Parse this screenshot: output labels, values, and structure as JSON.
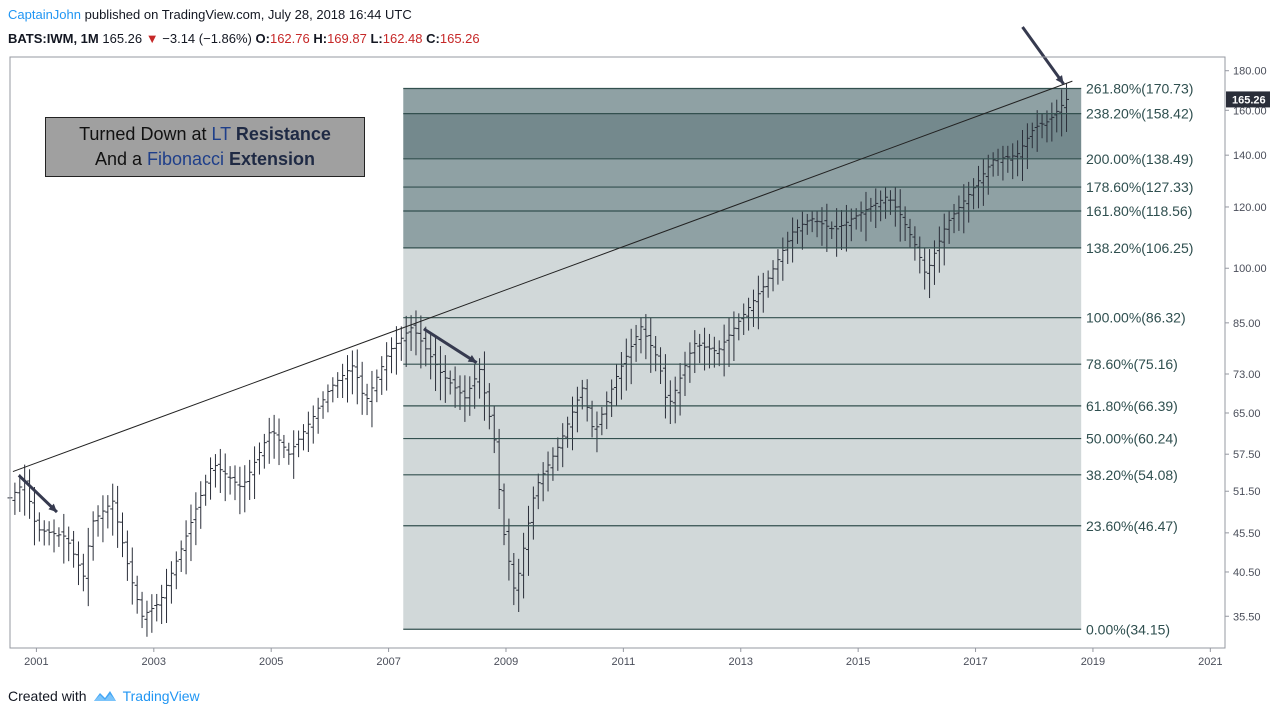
{
  "header": {
    "author": "CaptainJohn",
    "published_text": " published on TradingView.com, July 28, 2018 16:44 UTC"
  },
  "ticker": {
    "symbol_interval": "BATS:IWM, 1M",
    "last": "165.26",
    "down_arrow": "▼",
    "change": "−3.14 (−1.86%)",
    "open_label": "O:",
    "open": "162.76",
    "high_label": "H:",
    "high": "169.87",
    "low_label": "L:",
    "low": "162.48",
    "close_label": "C:",
    "close": "165.26",
    "colors": {
      "down": "#c62828"
    }
  },
  "annotation": {
    "line1_a": "Turned  Down at ",
    "line1_b": "LT ",
    "line1_c": "Resistance",
    "line2_a": "And  a ",
    "line2_b": "Fibonacci ",
    "line2_c": "Extension"
  },
  "footer": {
    "created_with": "Created with",
    "brand": "TradingView"
  },
  "chart_data": {
    "type": "bar",
    "price_scale": "log",
    "xlabel": "",
    "ylabel": "",
    "x_range": [
      2000.55,
      2021.25
    ],
    "ylim": [
      32.3,
      187.5
    ],
    "x_ticks": [
      {
        "label": "2001",
        "year": 2001
      },
      {
        "label": "2003",
        "year": 2003
      },
      {
        "label": "2005",
        "year": 2005
      },
      {
        "label": "2007",
        "year": 2007
      },
      {
        "label": "2009",
        "year": 2009
      },
      {
        "label": "2011",
        "year": 2011
      },
      {
        "label": "2013",
        "year": 2013
      },
      {
        "label": "2015",
        "year": 2015
      },
      {
        "label": "2017",
        "year": 2017
      },
      {
        "label": "2019",
        "year": 2019
      },
      {
        "label": "2021",
        "year": 2021
      }
    ],
    "y_ticks": [
      {
        "label": "180.00",
        "value": 180
      },
      {
        "label": "160.00",
        "value": 160
      },
      {
        "label": "140.00",
        "value": 140
      },
      {
        "label": "120.00",
        "value": 120
      },
      {
        "label": "100.00",
        "value": 100
      },
      {
        "label": "85.00",
        "value": 85
      },
      {
        "label": "73.00",
        "value": 73
      },
      {
        "label": "65.00",
        "value": 65
      },
      {
        "label": "57.50",
        "value": 57.5
      },
      {
        "label": "51.50",
        "value": 51.5
      },
      {
        "label": "45.50",
        "value": 45.5
      },
      {
        "label": "40.50",
        "value": 40.5
      },
      {
        "label": "35.50",
        "value": 35.5
      }
    ],
    "last_price": {
      "label": "165.26",
      "value": 165.26
    },
    "fib_extension": {
      "x_start": 2007.25,
      "x_end": 2018.8,
      "levels": [
        {
          "label": "261.80%(170.73)",
          "ratio": 2.618,
          "value": 170.73
        },
        {
          "label": "238.20%(158.42)",
          "ratio": 2.382,
          "value": 158.42
        },
        {
          "label": "200.00%(138.49)",
          "ratio": 2.0,
          "value": 138.49
        },
        {
          "label": "178.60%(127.33)",
          "ratio": 1.786,
          "value": 127.33
        },
        {
          "label": "161.80%(118.56)",
          "ratio": 1.618,
          "value": 118.56
        },
        {
          "label": "138.20%(106.25)",
          "ratio": 1.382,
          "value": 106.25
        },
        {
          "label": "100.00%(86.32)",
          "ratio": 1.0,
          "value": 86.32
        },
        {
          "label": "78.60%(75.16)",
          "ratio": 0.786,
          "value": 75.16
        },
        {
          "label": "61.80%(66.39)",
          "ratio": 0.618,
          "value": 66.39
        },
        {
          "label": "50.00%(60.24)",
          "ratio": 0.5,
          "value": 60.24
        },
        {
          "label": "38.20%(54.08)",
          "ratio": 0.382,
          "value": 54.08
        },
        {
          "label": "23.60%(46.47)",
          "ratio": 0.236,
          "value": 46.47
        },
        {
          "label": "0.00%(34.15)",
          "ratio": 0.0,
          "value": 34.15
        }
      ],
      "zone_colors": {
        "upper_dark": "#74898d",
        "upper_mid": "#8fa1a4",
        "lower": "#d1d8d9",
        "line": "#33504f"
      }
    },
    "trendline": {
      "x1": 2000.6,
      "y1": 54.6,
      "x2": 2018.65,
      "y2": 174.5
    },
    "arrows": [
      {
        "from_x": 2000.7,
        "from_y": 54.0,
        "to_x": 2001.35,
        "to_y": 48.4
      },
      {
        "from_x": 2007.6,
        "from_y": 83.5,
        "to_x": 2008.5,
        "to_y": 75.5
      },
      {
        "from_x": 2017.8,
        "from_y": 205.0,
        "to_x": 2018.5,
        "to_y": 173.0
      }
    ],
    "series_anchors": [
      [
        2000.55,
        50.5
      ],
      [
        2000.8,
        53.0
      ],
      [
        2001.0,
        46.0
      ],
      [
        2001.5,
        45.0
      ],
      [
        2001.8,
        40.0
      ],
      [
        2001.95,
        47.0
      ],
      [
        2002.3,
        50.0
      ],
      [
        2002.6,
        40.0
      ],
      [
        2002.8,
        35.5
      ],
      [
        2003.1,
        37.0
      ],
      [
        2003.5,
        44.0
      ],
      [
        2004.0,
        56.0
      ],
      [
        2004.5,
        52.0
      ],
      [
        2005.0,
        62.0
      ],
      [
        2005.3,
        57.5
      ],
      [
        2005.7,
        64.0
      ],
      [
        2006.0,
        70.0
      ],
      [
        2006.4,
        75.0
      ],
      [
        2006.6,
        67.0
      ],
      [
        2007.0,
        78.0
      ],
      [
        2007.4,
        84.0
      ],
      [
        2007.9,
        73.0
      ],
      [
        2008.3,
        68.0
      ],
      [
        2008.55,
        74.0
      ],
      [
        2008.8,
        60.0
      ],
      [
        2008.95,
        46.0
      ],
      [
        2009.15,
        38.0
      ],
      [
        2009.5,
        52.0
      ],
      [
        2009.9,
        59.0
      ],
      [
        2010.3,
        70.0
      ],
      [
        2010.5,
        61.0
      ],
      [
        2010.9,
        73.0
      ],
      [
        2011.3,
        84.0
      ],
      [
        2011.6,
        76.0
      ],
      [
        2011.75,
        66.0
      ],
      [
        2011.9,
        70.0
      ],
      [
        2012.2,
        80.0
      ],
      [
        2012.6,
        78.0
      ],
      [
        2012.9,
        84.0
      ],
      [
        2013.4,
        95.0
      ],
      [
        2013.9,
        112.0
      ],
      [
        2014.2,
        116.0
      ],
      [
        2014.6,
        112.0
      ],
      [
        2014.9,
        116.0
      ],
      [
        2015.5,
        124.0
      ],
      [
        2015.7,
        118.0
      ],
      [
        2016.0,
        106.0
      ],
      [
        2016.15,
        98.0
      ],
      [
        2016.5,
        114.0
      ],
      [
        2016.9,
        125.0
      ],
      [
        2017.3,
        138.0
      ],
      [
        2017.7,
        140.0
      ],
      [
        2018.0,
        152.0
      ],
      [
        2018.25,
        155.0
      ],
      [
        2018.55,
        165.26
      ]
    ],
    "colors": {
      "bars": "#2a2e39",
      "trendline": "#222222",
      "arrow": "#363a4f"
    }
  }
}
